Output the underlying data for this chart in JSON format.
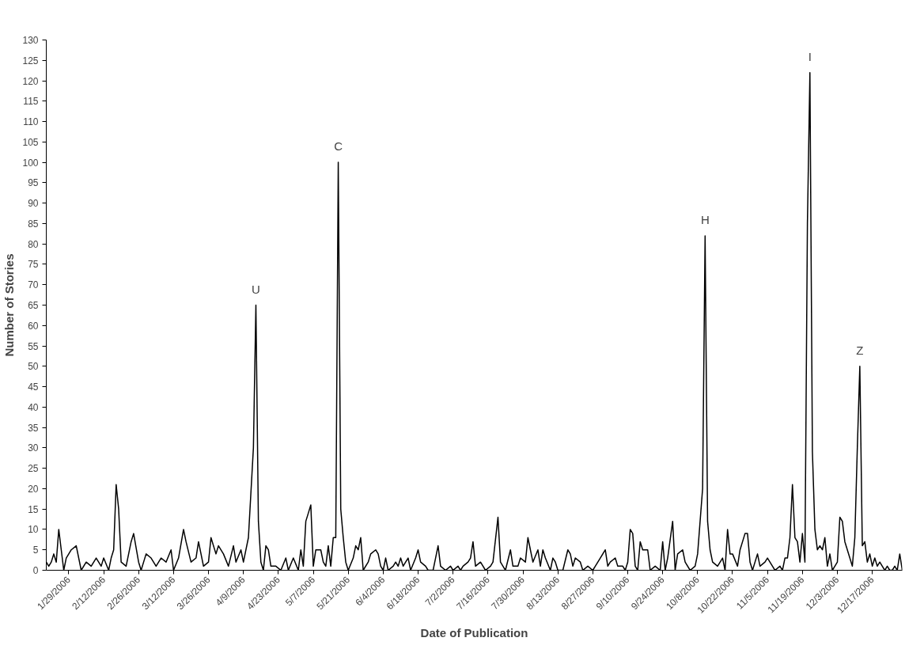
{
  "chart_data": {
    "type": "line",
    "xlabel": "Date of Publication",
    "ylabel": "Number of Stories",
    "x": [
      "2006-01-20",
      "2006-01-21",
      "2006-01-22",
      "2006-01-23",
      "2006-01-24",
      "2006-01-25",
      "2006-01-26",
      "2006-01-27",
      "2006-01-28",
      "2006-01-30",
      "2006-02-01",
      "2006-02-03",
      "2006-02-05",
      "2006-02-07",
      "2006-02-09",
      "2006-02-11",
      "2006-02-12",
      "2006-02-14",
      "2006-02-15",
      "2006-02-16",
      "2006-02-17",
      "2006-02-18",
      "2006-02-19",
      "2006-02-21",
      "2006-02-23",
      "2006-02-24",
      "2006-02-26",
      "2006-02-27",
      "2006-03-01",
      "2006-03-03",
      "2006-03-05",
      "2006-03-07",
      "2006-03-09",
      "2006-03-11",
      "2006-03-12",
      "2006-03-14",
      "2006-03-16",
      "2006-03-17",
      "2006-03-19",
      "2006-03-21",
      "2006-03-22",
      "2006-03-24",
      "2006-03-26",
      "2006-03-27",
      "2006-03-29",
      "2006-03-30",
      "2006-04-01",
      "2006-04-03",
      "2006-04-05",
      "2006-04-06",
      "2006-04-08",
      "2006-04-09",
      "2006-04-11",
      "2006-04-13",
      "2006-04-14",
      "2006-04-15",
      "2006-04-16",
      "2006-04-17",
      "2006-04-18",
      "2006-04-19",
      "2006-04-20",
      "2006-04-22",
      "2006-04-24",
      "2006-04-26",
      "2006-04-27",
      "2006-04-29",
      "2006-05-01",
      "2006-05-02",
      "2006-05-03",
      "2006-05-04",
      "2006-05-05",
      "2006-05-06",
      "2006-05-07",
      "2006-05-08",
      "2006-05-10",
      "2006-05-11",
      "2006-05-12",
      "2006-05-13",
      "2006-05-14",
      "2006-05-15",
      "2006-05-16",
      "2006-05-17",
      "2006-05-18",
      "2006-05-19",
      "2006-05-20",
      "2006-05-21",
      "2006-05-23",
      "2006-05-24",
      "2006-05-25",
      "2006-05-26",
      "2006-05-27",
      "2006-05-29",
      "2006-05-30",
      "2006-06-01",
      "2006-06-02",
      "2006-06-03",
      "2006-06-04",
      "2006-06-05",
      "2006-06-06",
      "2006-06-08",
      "2006-06-09",
      "2006-06-10",
      "2006-06-11",
      "2006-06-12",
      "2006-06-13",
      "2006-06-14",
      "2006-06-15",
      "2006-06-17",
      "2006-06-18",
      "2006-06-19",
      "2006-06-21",
      "2006-06-22",
      "2006-06-24",
      "2006-06-25",
      "2006-06-26",
      "2006-06-27",
      "2006-06-29",
      "2006-07-01",
      "2006-07-02",
      "2006-07-04",
      "2006-07-05",
      "2006-07-06",
      "2006-07-08",
      "2006-07-09",
      "2006-07-10",
      "2006-07-11",
      "2006-07-13",
      "2006-07-15",
      "2006-07-17",
      "2006-07-18",
      "2006-07-20",
      "2006-07-21",
      "2006-07-22",
      "2006-07-23",
      "2006-07-25",
      "2006-07-26",
      "2006-07-28",
      "2006-07-29",
      "2006-07-31",
      "2006-08-01",
      "2006-08-02",
      "2006-08-03",
      "2006-08-05",
      "2006-08-06",
      "2006-08-07",
      "2006-08-08",
      "2006-08-10",
      "2006-08-11",
      "2006-08-12",
      "2006-08-13",
      "2006-08-15",
      "2006-08-17",
      "2006-08-18",
      "2006-08-19",
      "2006-08-20",
      "2006-08-22",
      "2006-08-23",
      "2006-08-25",
      "2006-08-27",
      "2006-08-28",
      "2006-08-30",
      "2006-09-01",
      "2006-09-02",
      "2006-09-03",
      "2006-09-05",
      "2006-09-06",
      "2006-09-08",
      "2006-09-09",
      "2006-09-10",
      "2006-09-11",
      "2006-09-12",
      "2006-09-13",
      "2006-09-14",
      "2006-09-15",
      "2006-09-16",
      "2006-09-18",
      "2006-09-19",
      "2006-09-21",
      "2006-09-23",
      "2006-09-24",
      "2006-09-25",
      "2006-09-26",
      "2006-09-28",
      "2006-09-29",
      "2006-09-30",
      "2006-10-02",
      "2006-10-03",
      "2006-10-05",
      "2006-10-07",
      "2006-10-08",
      "2006-10-10",
      "2006-10-11",
      "2006-10-12",
      "2006-10-13",
      "2006-10-14",
      "2006-10-16",
      "2006-10-18",
      "2006-10-19",
      "2006-10-20",
      "2006-10-21",
      "2006-10-22",
      "2006-10-24",
      "2006-10-25",
      "2006-10-27",
      "2006-10-28",
      "2006-10-29",
      "2006-10-30",
      "2006-11-01",
      "2006-11-02",
      "2006-11-04",
      "2006-11-05",
      "2006-11-07",
      "2006-11-08",
      "2006-11-10",
      "2006-11-11",
      "2006-11-12",
      "2006-11-13",
      "2006-11-14",
      "2006-11-15",
      "2006-11-16",
      "2006-11-17",
      "2006-11-18",
      "2006-11-19",
      "2006-11-20",
      "2006-11-21",
      "2006-11-22",
      "2006-11-23",
      "2006-11-24",
      "2006-11-25",
      "2006-11-26",
      "2006-11-27",
      "2006-11-28",
      "2006-11-29",
      "2006-11-30",
      "2006-12-01",
      "2006-12-02",
      "2006-12-03",
      "2006-12-04",
      "2006-12-05",
      "2006-12-06",
      "2006-12-07",
      "2006-12-08",
      "2006-12-09",
      "2006-12-10",
      "2006-12-11",
      "2006-12-12",
      "2006-12-13",
      "2006-12-14",
      "2006-12-15",
      "2006-12-16",
      "2006-12-17",
      "2006-12-18",
      "2006-12-19",
      "2006-12-20",
      "2006-12-21",
      "2006-12-22",
      "2006-12-23",
      "2006-12-24",
      "2006-12-25",
      "2006-12-26",
      "2006-12-27",
      "2006-12-28",
      "2006-12-29"
    ],
    "series": [
      {
        "color": "#000000",
        "values": [
          2,
          1,
          2,
          4,
          2,
          10,
          5,
          0,
          3,
          5,
          6,
          0,
          2,
          1,
          3,
          1,
          3,
          0,
          3,
          5,
          21,
          15,
          2,
          1,
          7,
          9,
          2,
          0,
          4,
          3,
          1,
          3,
          2,
          5,
          0,
          3,
          10,
          7,
          2,
          3,
          7,
          1,
          2,
          8,
          4,
          6,
          4,
          1,
          6,
          2,
          5,
          2,
          8,
          30,
          65,
          12,
          2,
          0,
          6,
          5,
          1,
          1,
          0,
          3,
          0,
          3,
          0,
          5,
          1,
          12,
          14,
          16,
          1,
          5,
          5,
          2,
          1,
          6,
          1,
          8,
          8,
          100,
          15,
          8,
          2,
          0,
          3,
          6,
          5,
          8,
          0,
          2,
          4,
          5,
          4,
          1,
          0,
          3,
          0,
          1,
          2,
          1,
          3,
          1,
          2,
          3,
          0,
          3,
          5,
          2,
          1,
          0,
          0,
          3,
          6,
          1,
          0,
          1,
          0,
          1,
          0,
          1,
          2,
          3,
          7,
          1,
          2,
          0,
          1,
          2,
          13,
          2,
          1,
          0,
          5,
          1,
          1,
          3,
          2,
          8,
          5,
          2,
          5,
          1,
          5,
          3,
          0,
          3,
          2,
          0,
          0,
          5,
          4,
          1,
          3,
          2,
          0,
          1,
          0,
          1,
          3,
          5,
          1,
          2,
          3,
          1,
          1,
          0,
          2,
          10,
          9,
          1,
          0,
          7,
          5,
          5,
          0,
          1,
          0,
          7,
          0,
          3,
          12,
          0,
          4,
          5,
          2,
          0,
          1,
          4,
          20,
          82,
          12,
          5,
          2,
          1,
          3,
          0,
          10,
          4,
          4,
          1,
          5,
          9,
          9,
          2,
          0,
          4,
          1,
          2,
          3,
          1,
          0,
          1,
          0,
          3,
          3,
          8,
          21,
          8,
          7,
          2,
          9,
          2,
          85,
          122,
          29,
          10,
          5,
          6,
          5,
          8,
          1,
          4,
          0,
          1,
          2,
          13,
          12,
          7,
          5,
          3,
          1,
          8,
          30,
          50,
          6,
          7,
          2,
          4,
          1,
          3,
          1,
          2,
          1,
          0,
          1,
          0,
          0,
          1,
          0,
          4,
          0
        ]
      }
    ],
    "xlim": [
      "2006-01-20",
      "2006-12-29"
    ],
    "xticks": [
      {
        "value": "2006-01-29",
        "label": "1/29/2006"
      },
      {
        "value": "2006-02-12",
        "label": "2/12/2006"
      },
      {
        "value": "2006-02-26",
        "label": "2/26/2006"
      },
      {
        "value": "2006-03-12",
        "label": "3/12/2006"
      },
      {
        "value": "2006-03-26",
        "label": "3/26/2006"
      },
      {
        "value": "2006-04-09",
        "label": "4/9/2006"
      },
      {
        "value": "2006-04-23",
        "label": "4/23/2006"
      },
      {
        "value": "2006-05-07",
        "label": "5/7/2006"
      },
      {
        "value": "2006-05-21",
        "label": "5/21/2006"
      },
      {
        "value": "2006-06-04",
        "label": "6/4/2006"
      },
      {
        "value": "2006-06-18",
        "label": "6/18/2006"
      },
      {
        "value": "2006-07-02",
        "label": "7/2/2006"
      },
      {
        "value": "2006-07-16",
        "label": "7/16/2006"
      },
      {
        "value": "2006-07-30",
        "label": "7/30/2006"
      },
      {
        "value": "2006-08-13",
        "label": "8/13/2006"
      },
      {
        "value": "2006-08-27",
        "label": "8/27/2006"
      },
      {
        "value": "2006-09-10",
        "label": "9/10/2006"
      },
      {
        "value": "2006-09-24",
        "label": "9/24/2006"
      },
      {
        "value": "2006-10-08",
        "label": "10/8/2006"
      },
      {
        "value": "2006-10-22",
        "label": "10/22/2006"
      },
      {
        "value": "2006-11-05",
        "label": "11/5/2006"
      },
      {
        "value": "2006-11-19",
        "label": "11/19/2006"
      },
      {
        "value": "2006-12-03",
        "label": "12/3/2006"
      },
      {
        "value": "2006-12-17",
        "label": "12/17/2006"
      }
    ],
    "ylim": [
      0,
      130
    ],
    "yticks": [
      0,
      5,
      10,
      15,
      20,
      25,
      30,
      35,
      40,
      45,
      50,
      55,
      60,
      65,
      70,
      75,
      80,
      85,
      90,
      95,
      100,
      105,
      110,
      115,
      120,
      125,
      130
    ],
    "annotations": [
      {
        "text": "U",
        "x": "2006-04-14",
        "y": 65
      },
      {
        "text": "C",
        "x": "2006-05-17",
        "y": 100
      },
      {
        "text": "H",
        "x": "2006-10-11",
        "y": 82
      },
      {
        "text": "I",
        "x": "2006-11-22",
        "y": 122
      },
      {
        "text": "Z",
        "x": "2006-12-12",
        "y": 50
      }
    ],
    "grid": false,
    "marker": "none",
    "line_style": "solid"
  }
}
